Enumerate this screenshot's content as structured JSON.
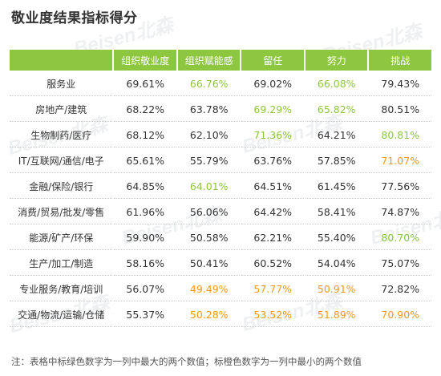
{
  "title": "敬业度结果指标得分",
  "watermark": "Beisen北森",
  "colors": {
    "header_bg": "#8dc63f",
    "highlight_high": "#8dc63f",
    "highlight_low": "#f39a1e"
  },
  "table": {
    "corner": "",
    "columns": [
      "组织敬业度",
      "组织赋能感",
      "留任",
      "努力",
      "挑战"
    ],
    "rows": [
      {
        "label": "服务业",
        "cells": [
          {
            "v": "69.61%",
            "c": ""
          },
          {
            "v": "66.76%",
            "c": "hi"
          },
          {
            "v": "69.02%",
            "c": ""
          },
          {
            "v": "66.08%",
            "c": "hi"
          },
          {
            "v": "79.43%",
            "c": ""
          }
        ]
      },
      {
        "label": "房地产/建筑",
        "cells": [
          {
            "v": "68.22%",
            "c": ""
          },
          {
            "v": "63.78%",
            "c": ""
          },
          {
            "v": "69.29%",
            "c": "hi"
          },
          {
            "v": "65.82%",
            "c": "hi"
          },
          {
            "v": "80.51%",
            "c": ""
          }
        ]
      },
      {
        "label": "生物制药/医疗",
        "cells": [
          {
            "v": "68.12%",
            "c": ""
          },
          {
            "v": "62.10%",
            "c": ""
          },
          {
            "v": "71.36%",
            "c": "hi"
          },
          {
            "v": "64.21%",
            "c": ""
          },
          {
            "v": "80.81%",
            "c": "hi"
          }
        ]
      },
      {
        "label": "IT/互联网/通信/电子",
        "cells": [
          {
            "v": "65.61%",
            "c": ""
          },
          {
            "v": "55.79%",
            "c": ""
          },
          {
            "v": "63.76%",
            "c": ""
          },
          {
            "v": "57.85%",
            "c": ""
          },
          {
            "v": "71.07%",
            "c": "lo"
          }
        ]
      },
      {
        "label": "金融/保险/银行",
        "cells": [
          {
            "v": "64.85%",
            "c": ""
          },
          {
            "v": "64.01%",
            "c": "hi"
          },
          {
            "v": "64.51%",
            "c": ""
          },
          {
            "v": "61.45%",
            "c": ""
          },
          {
            "v": "77.56%",
            "c": ""
          }
        ]
      },
      {
        "label": "消费/贸易/批发/零售",
        "cells": [
          {
            "v": "61.96%",
            "c": ""
          },
          {
            "v": "56.06%",
            "c": ""
          },
          {
            "v": "64.42%",
            "c": ""
          },
          {
            "v": "58.41%",
            "c": ""
          },
          {
            "v": "74.87%",
            "c": ""
          }
        ]
      },
      {
        "label": "能源/矿产/环保",
        "cells": [
          {
            "v": "59.90%",
            "c": ""
          },
          {
            "v": "50.58%",
            "c": ""
          },
          {
            "v": "62.21%",
            "c": ""
          },
          {
            "v": "55.40%",
            "c": ""
          },
          {
            "v": "80.70%",
            "c": "hi"
          }
        ]
      },
      {
        "label": "生产/加工/制造",
        "cells": [
          {
            "v": "58.16%",
            "c": ""
          },
          {
            "v": "50.41%",
            "c": ""
          },
          {
            "v": "60.52%",
            "c": ""
          },
          {
            "v": "54.04%",
            "c": ""
          },
          {
            "v": "75.07%",
            "c": ""
          }
        ]
      },
      {
        "label": "专业服务/教育/培训",
        "cells": [
          {
            "v": "56.07%",
            "c": ""
          },
          {
            "v": "49.49%",
            "c": "lo"
          },
          {
            "v": "57.77%",
            "c": "lo"
          },
          {
            "v": "50.91%",
            "c": "lo"
          },
          {
            "v": "72.82%",
            "c": ""
          }
        ]
      },
      {
        "label": "交通/物流/运输/仓储",
        "cells": [
          {
            "v": "55.37%",
            "c": ""
          },
          {
            "v": "50.28%",
            "c": "lo"
          },
          {
            "v": "53.52%",
            "c": "lo"
          },
          {
            "v": "51.89%",
            "c": "lo"
          },
          {
            "v": "70.90%",
            "c": "lo"
          }
        ]
      }
    ]
  },
  "note": "注：表格中标绿色数字为一列中最大的两个数值；标橙色数字为一列中最小的两个数值"
}
